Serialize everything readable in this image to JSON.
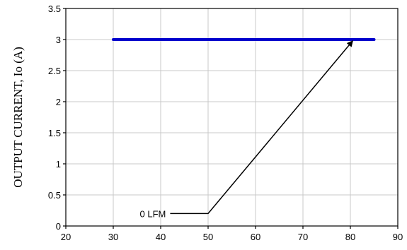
{
  "chart_data": {
    "type": "line",
    "title": "",
    "xlabel": "",
    "ylabel": "OUTPUT CURRENT, Io (A)",
    "xlim": [
      20,
      90
    ],
    "ylim": [
      0,
      3.5
    ],
    "xticks": [
      "20",
      "30",
      "40",
      "50",
      "60",
      "70",
      "80",
      "90"
    ],
    "yticks": [
      "0",
      "0.5",
      "1",
      "1.5",
      "2",
      "2.5",
      "3",
      "3.5"
    ],
    "grid": true,
    "series": [
      {
        "name": "",
        "color": "#0000cc",
        "x": [
          30,
          85
        ],
        "y": [
          3,
          3
        ]
      }
    ],
    "annotations": [
      {
        "text": "0 LFM",
        "color": "#000000",
        "leader_x": [
          42,
          50,
          80.5
        ],
        "leader_y": [
          0.2,
          0.2,
          2.98
        ]
      }
    ]
  }
}
